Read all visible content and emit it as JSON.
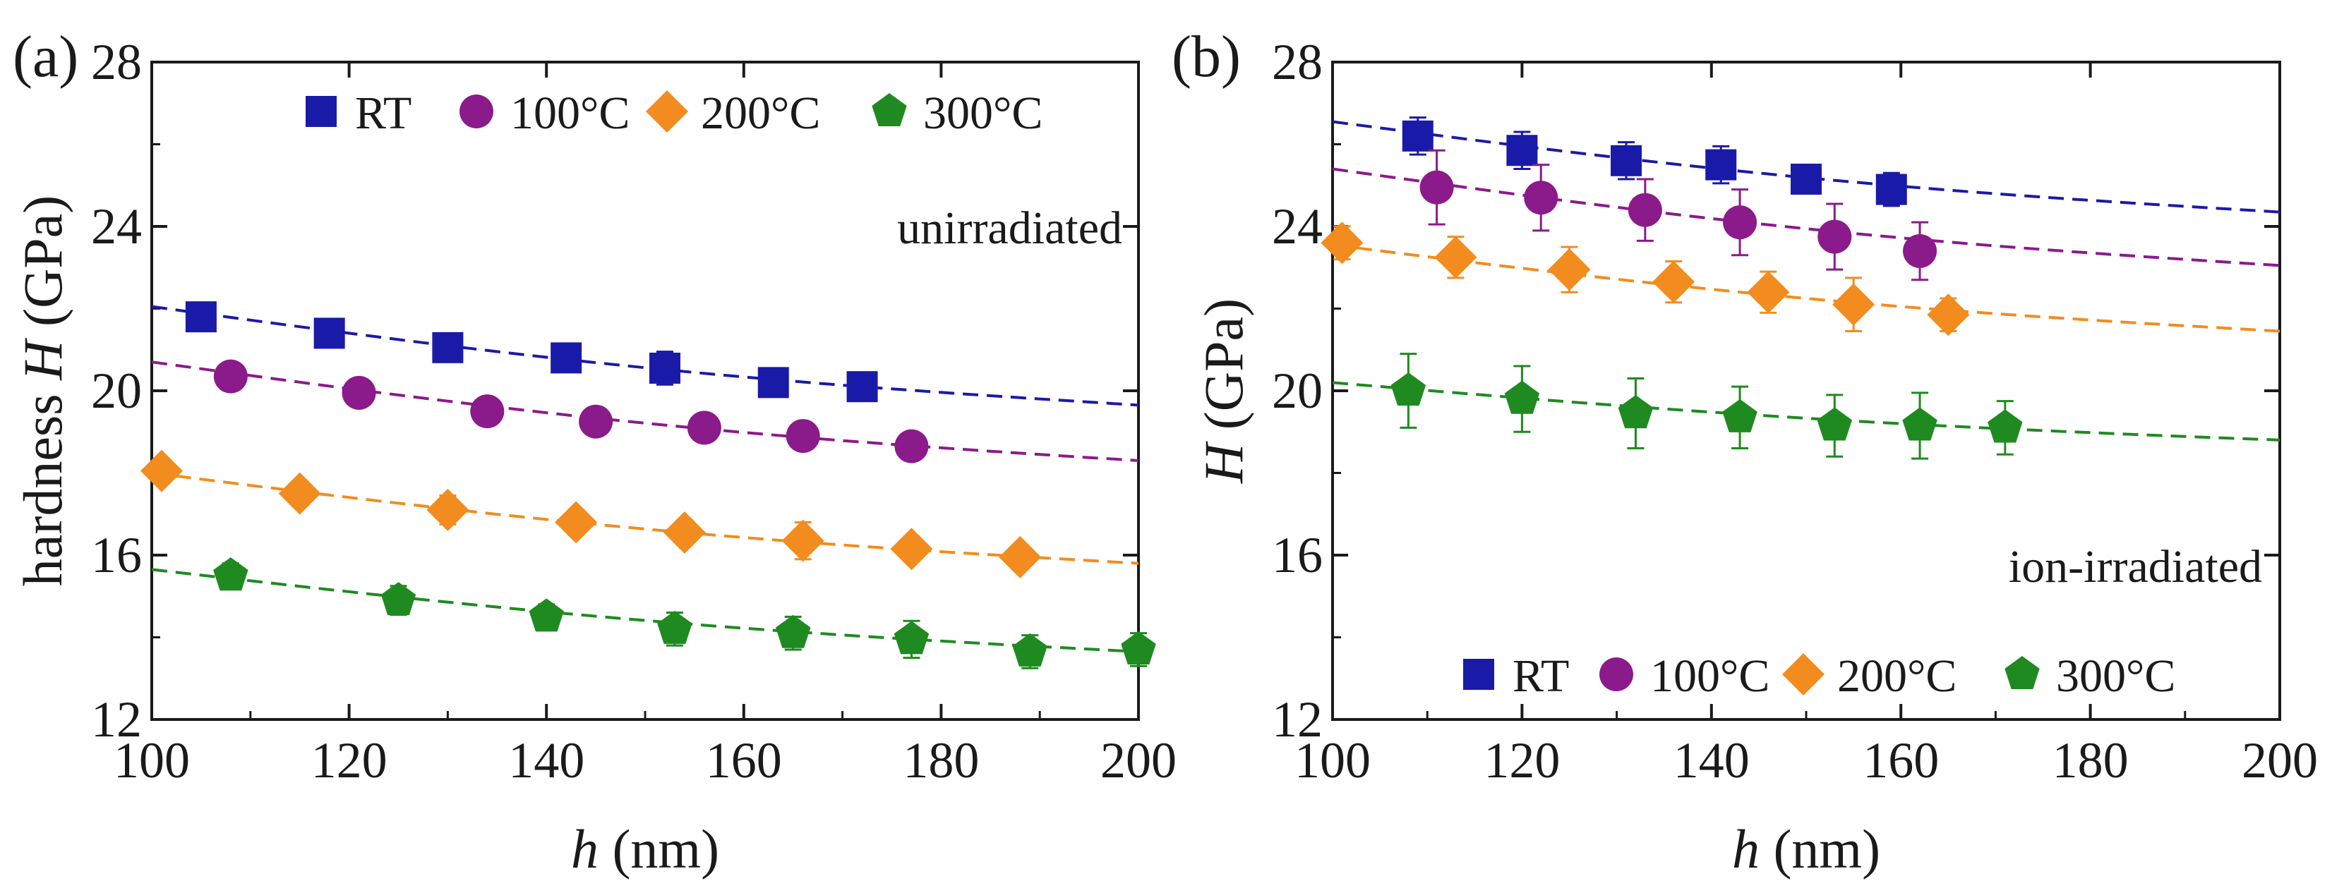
{
  "chart_data": [
    {
      "type": "scatter",
      "panel_label": "(a)",
      "annotation": "unirradiated",
      "xlabel_italic": "h",
      "xlabel_unit": "(nm)",
      "ylabel_prefix": "hardness ",
      "ylabel_italic": "H",
      "ylabel_unit": "(GPa)",
      "xlim": [
        100,
        200
      ],
      "ylim": [
        12,
        28
      ],
      "xticks": [
        "100",
        "120",
        "140",
        "160",
        "180",
        "200"
      ],
      "yticks": [
        "12",
        "16",
        "20",
        "24",
        "28"
      ],
      "legend_position": "top-right",
      "series": [
        {
          "name": "RT",
          "color": "#1a1aa8",
          "marker": "square",
          "x": [
            105,
            118,
            130,
            142,
            152,
            163,
            172
          ],
          "y": [
            21.8,
            21.4,
            21.05,
            20.8,
            20.55,
            20.2,
            20.1
          ],
          "err": [
            0.3,
            0.2,
            0.3,
            0.25,
            0.4,
            0.15,
            0.15
          ],
          "fit": [
            22.05,
            19.65
          ]
        },
        {
          "name": "100°C",
          "color": "#8b1a8b",
          "marker": "circle",
          "x": [
            108,
            121,
            134,
            145,
            156,
            166,
            177
          ],
          "y": [
            20.35,
            19.95,
            19.5,
            19.25,
            19.1,
            18.9,
            18.65
          ],
          "err": [
            0.2,
            0.15,
            0.2,
            0.2,
            0.2,
            0.2,
            0.2
          ],
          "fit": [
            20.7,
            18.3
          ]
        },
        {
          "name": "200°C",
          "color": "#f28c1e",
          "marker": "diamond",
          "x": [
            101,
            115,
            130,
            143,
            154,
            166,
            177,
            188
          ],
          "y": [
            18.05,
            17.5,
            17.1,
            16.8,
            16.55,
            16.35,
            16.15,
            15.95
          ],
          "err": [
            0.3,
            0.3,
            0.35,
            0.3,
            0.3,
            0.45,
            0.3,
            0.3
          ],
          "fit": [
            18.0,
            15.8
          ]
        },
        {
          "name": "300°C",
          "color": "#1f8a1f",
          "marker": "pentagon",
          "x": [
            108,
            125,
            140,
            153,
            165,
            177,
            189,
            200
          ],
          "y": [
            15.5,
            14.9,
            14.5,
            14.2,
            14.1,
            13.95,
            13.65,
            13.7
          ],
          "err": [
            0.3,
            0.35,
            0.3,
            0.4,
            0.4,
            0.45,
            0.4,
            0.4
          ],
          "fit": [
            15.65,
            13.65
          ]
        }
      ]
    },
    {
      "type": "scatter",
      "panel_label": "(b)",
      "annotation": "ion-irradiated",
      "xlabel_italic": "h",
      "xlabel_unit": "(nm)",
      "ylabel_prefix": "",
      "ylabel_italic": "H",
      "ylabel_unit": "(GPa)",
      "xlim": [
        100,
        200
      ],
      "ylim": [
        12,
        28
      ],
      "xticks": [
        "100",
        "120",
        "140",
        "160",
        "180",
        "200"
      ],
      "yticks": [
        "12",
        "16",
        "20",
        "24",
        "28"
      ],
      "legend_position": "bottom-right",
      "series": [
        {
          "name": "RT",
          "color": "#1a1aa8",
          "marker": "square",
          "x": [
            109,
            120,
            131,
            141,
            150,
            159
          ],
          "y": [
            26.2,
            25.85,
            25.6,
            25.5,
            25.15,
            24.9
          ],
          "err": [
            0.45,
            0.45,
            0.45,
            0.45,
            0.35,
            0.4
          ],
          "fit": [
            26.55,
            24.35
          ]
        },
        {
          "name": "100°C",
          "color": "#8b1a8b",
          "marker": "circle",
          "x": [
            111,
            122,
            133,
            143,
            153,
            162
          ],
          "y": [
            24.95,
            24.7,
            24.4,
            24.1,
            23.75,
            23.4
          ],
          "err": [
            0.9,
            0.8,
            0.75,
            0.8,
            0.8,
            0.7
          ],
          "fit": [
            25.4,
            23.05
          ]
        },
        {
          "name": "200°C",
          "color": "#f28c1e",
          "marker": "diamond",
          "x": [
            101,
            113,
            125,
            136,
            146,
            155,
            165
          ],
          "y": [
            23.6,
            23.25,
            22.95,
            22.65,
            22.4,
            22.1,
            21.85
          ],
          "err": [
            0.4,
            0.5,
            0.55,
            0.5,
            0.5,
            0.65,
            0.4
          ],
          "fit": [
            23.55,
            21.45
          ]
        },
        {
          "name": "300°C",
          "color": "#1f8a1f",
          "marker": "pentagon",
          "x": [
            108,
            120,
            132,
            143,
            153,
            162,
            171
          ],
          "y": [
            20.0,
            19.8,
            19.45,
            19.35,
            19.15,
            19.15,
            19.1
          ],
          "err": [
            0.9,
            0.8,
            0.85,
            0.75,
            0.75,
            0.8,
            0.65
          ],
          "fit": [
            20.2,
            18.8
          ]
        }
      ]
    }
  ]
}
